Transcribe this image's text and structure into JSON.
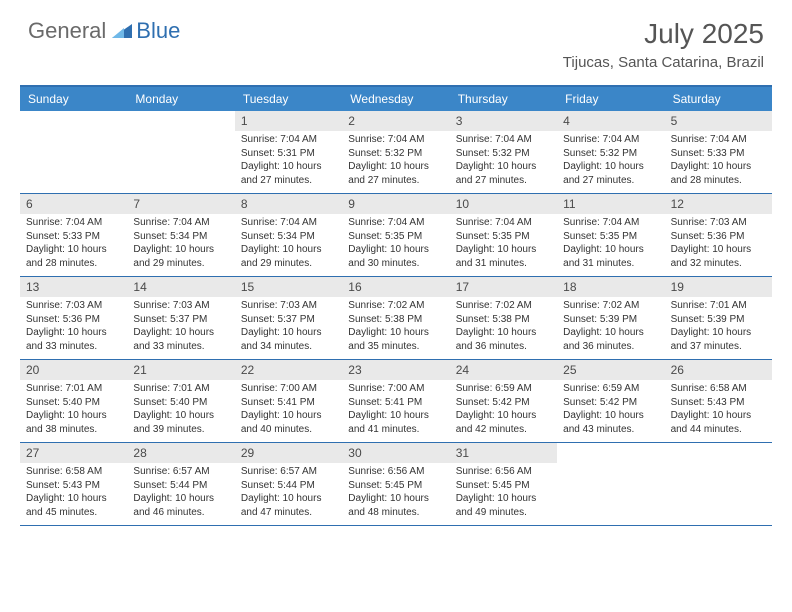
{
  "logo": {
    "part1": "General",
    "part2": "Blue"
  },
  "title": "July 2025",
  "location": "Tijucas, Santa Catarina, Brazil",
  "colors": {
    "header_bar": "#3b86c8",
    "accent_border": "#2f6fb0",
    "daynum_bg": "#e9e9e9",
    "text": "#333333",
    "logo_gray": "#6a6a6a",
    "logo_blue": "#2f6fb0"
  },
  "weekdays": [
    "Sunday",
    "Monday",
    "Tuesday",
    "Wednesday",
    "Thursday",
    "Friday",
    "Saturday"
  ],
  "layout": {
    "columns": 7,
    "rows": 5,
    "first_day_column_index": 2,
    "days_in_month": 31
  },
  "days": [
    {
      "n": 1,
      "sunrise": "7:04 AM",
      "sunset": "5:31 PM",
      "daylight": "10 hours and 27 minutes."
    },
    {
      "n": 2,
      "sunrise": "7:04 AM",
      "sunset": "5:32 PM",
      "daylight": "10 hours and 27 minutes."
    },
    {
      "n": 3,
      "sunrise": "7:04 AM",
      "sunset": "5:32 PM",
      "daylight": "10 hours and 27 minutes."
    },
    {
      "n": 4,
      "sunrise": "7:04 AM",
      "sunset": "5:32 PM",
      "daylight": "10 hours and 27 minutes."
    },
    {
      "n": 5,
      "sunrise": "7:04 AM",
      "sunset": "5:33 PM",
      "daylight": "10 hours and 28 minutes."
    },
    {
      "n": 6,
      "sunrise": "7:04 AM",
      "sunset": "5:33 PM",
      "daylight": "10 hours and 28 minutes."
    },
    {
      "n": 7,
      "sunrise": "7:04 AM",
      "sunset": "5:34 PM",
      "daylight": "10 hours and 29 minutes."
    },
    {
      "n": 8,
      "sunrise": "7:04 AM",
      "sunset": "5:34 PM",
      "daylight": "10 hours and 29 minutes."
    },
    {
      "n": 9,
      "sunrise": "7:04 AM",
      "sunset": "5:35 PM",
      "daylight": "10 hours and 30 minutes."
    },
    {
      "n": 10,
      "sunrise": "7:04 AM",
      "sunset": "5:35 PM",
      "daylight": "10 hours and 31 minutes."
    },
    {
      "n": 11,
      "sunrise": "7:04 AM",
      "sunset": "5:35 PM",
      "daylight": "10 hours and 31 minutes."
    },
    {
      "n": 12,
      "sunrise": "7:03 AM",
      "sunset": "5:36 PM",
      "daylight": "10 hours and 32 minutes."
    },
    {
      "n": 13,
      "sunrise": "7:03 AM",
      "sunset": "5:36 PM",
      "daylight": "10 hours and 33 minutes."
    },
    {
      "n": 14,
      "sunrise": "7:03 AM",
      "sunset": "5:37 PM",
      "daylight": "10 hours and 33 minutes."
    },
    {
      "n": 15,
      "sunrise": "7:03 AM",
      "sunset": "5:37 PM",
      "daylight": "10 hours and 34 minutes."
    },
    {
      "n": 16,
      "sunrise": "7:02 AM",
      "sunset": "5:38 PM",
      "daylight": "10 hours and 35 minutes."
    },
    {
      "n": 17,
      "sunrise": "7:02 AM",
      "sunset": "5:38 PM",
      "daylight": "10 hours and 36 minutes."
    },
    {
      "n": 18,
      "sunrise": "7:02 AM",
      "sunset": "5:39 PM",
      "daylight": "10 hours and 36 minutes."
    },
    {
      "n": 19,
      "sunrise": "7:01 AM",
      "sunset": "5:39 PM",
      "daylight": "10 hours and 37 minutes."
    },
    {
      "n": 20,
      "sunrise": "7:01 AM",
      "sunset": "5:40 PM",
      "daylight": "10 hours and 38 minutes."
    },
    {
      "n": 21,
      "sunrise": "7:01 AM",
      "sunset": "5:40 PM",
      "daylight": "10 hours and 39 minutes."
    },
    {
      "n": 22,
      "sunrise": "7:00 AM",
      "sunset": "5:41 PM",
      "daylight": "10 hours and 40 minutes."
    },
    {
      "n": 23,
      "sunrise": "7:00 AM",
      "sunset": "5:41 PM",
      "daylight": "10 hours and 41 minutes."
    },
    {
      "n": 24,
      "sunrise": "6:59 AM",
      "sunset": "5:42 PM",
      "daylight": "10 hours and 42 minutes."
    },
    {
      "n": 25,
      "sunrise": "6:59 AM",
      "sunset": "5:42 PM",
      "daylight": "10 hours and 43 minutes."
    },
    {
      "n": 26,
      "sunrise": "6:58 AM",
      "sunset": "5:43 PM",
      "daylight": "10 hours and 44 minutes."
    },
    {
      "n": 27,
      "sunrise": "6:58 AM",
      "sunset": "5:43 PM",
      "daylight": "10 hours and 45 minutes."
    },
    {
      "n": 28,
      "sunrise": "6:57 AM",
      "sunset": "5:44 PM",
      "daylight": "10 hours and 46 minutes."
    },
    {
      "n": 29,
      "sunrise": "6:57 AM",
      "sunset": "5:44 PM",
      "daylight": "10 hours and 47 minutes."
    },
    {
      "n": 30,
      "sunrise": "6:56 AM",
      "sunset": "5:45 PM",
      "daylight": "10 hours and 48 minutes."
    },
    {
      "n": 31,
      "sunrise": "6:56 AM",
      "sunset": "5:45 PM",
      "daylight": "10 hours and 49 minutes."
    }
  ],
  "labels": {
    "sunrise": "Sunrise:",
    "sunset": "Sunset:",
    "daylight": "Daylight:"
  }
}
